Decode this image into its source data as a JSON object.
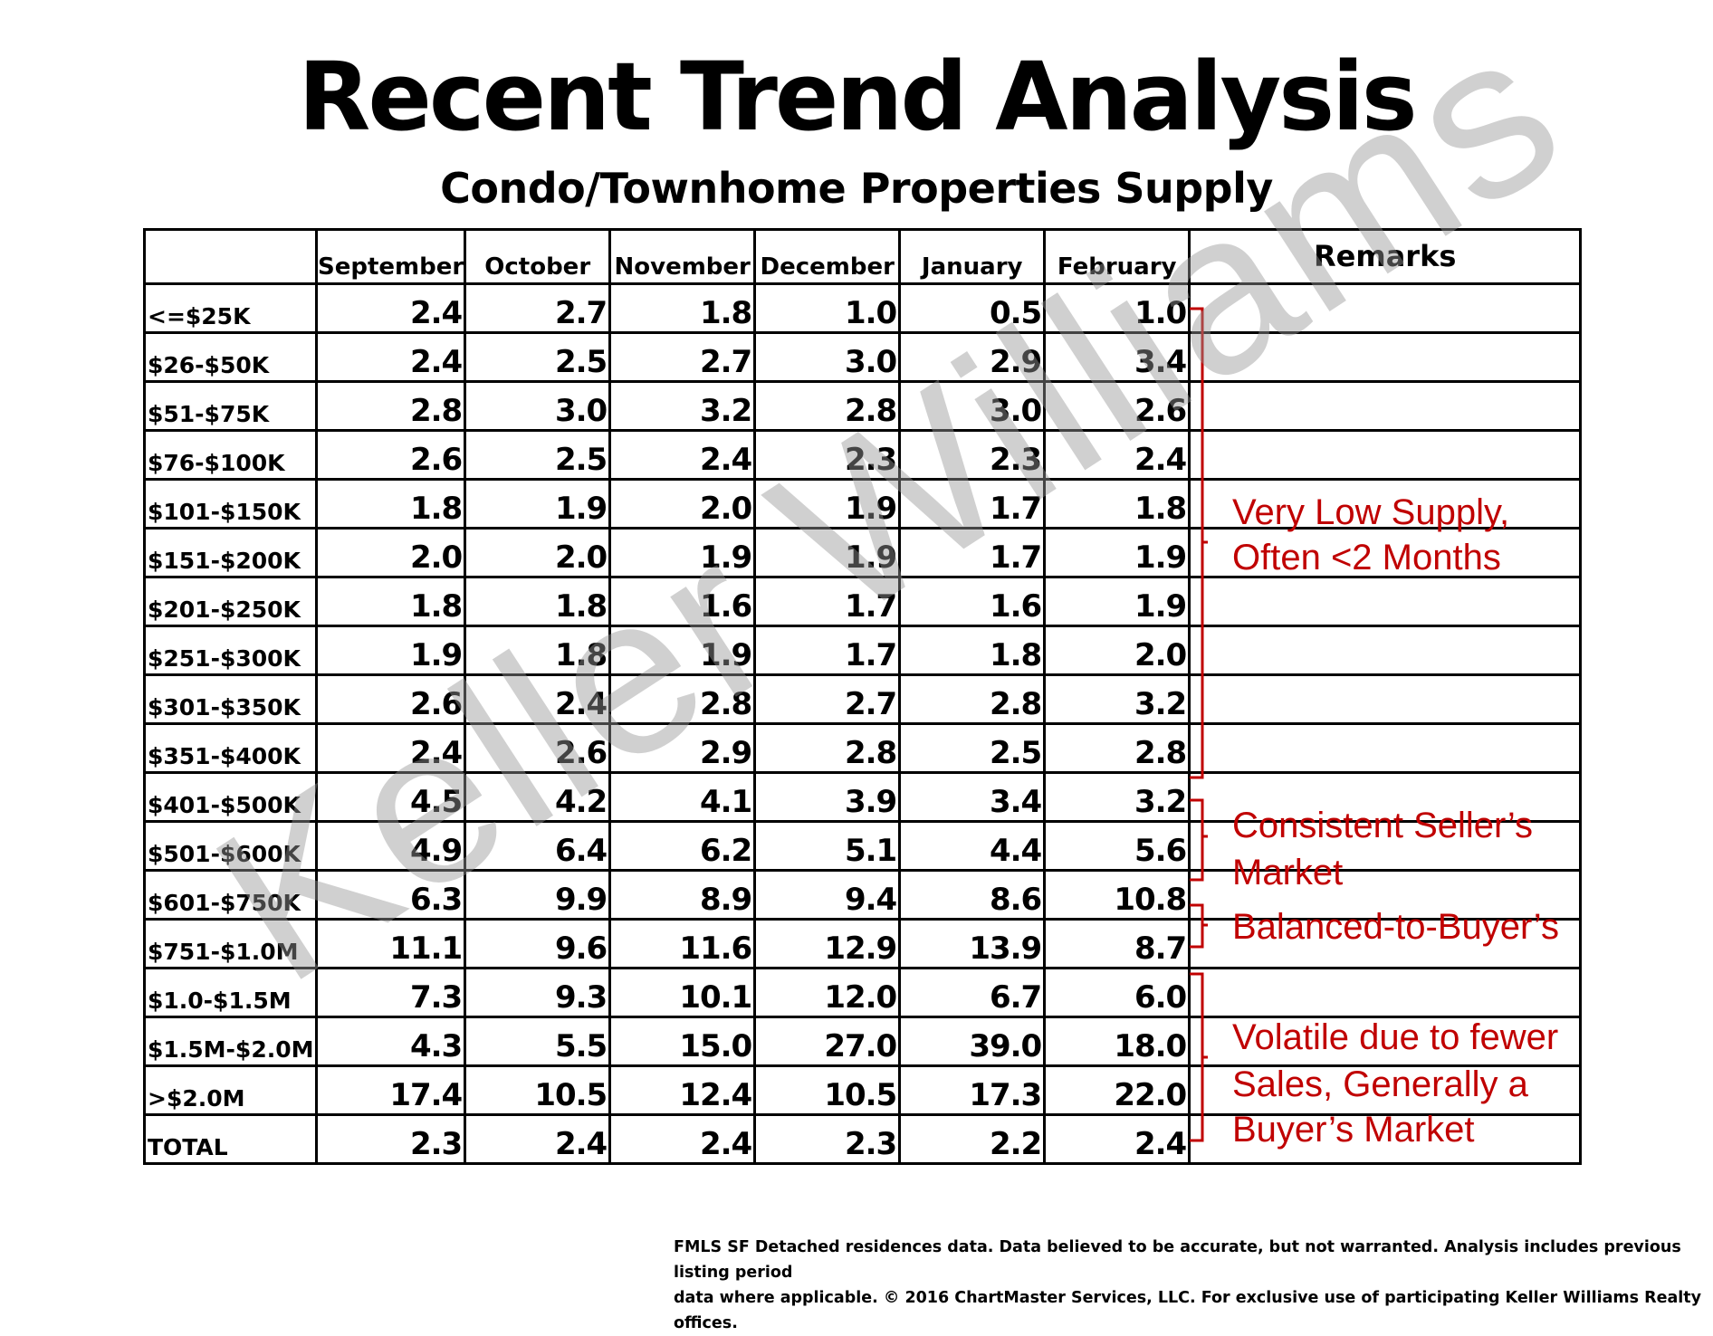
{
  "title": "Recent Trend Analysis",
  "subtitle": "Condo/Townhome Properties Supply",
  "table": {
    "columns": [
      "September",
      "October",
      "November",
      "December",
      "January",
      "February"
    ],
    "remarks_header": "Remarks",
    "rows": [
      {
        "label": "<=$25K",
        "values": [
          "2.4",
          "2.7",
          "1.8",
          "1.0",
          "0.5",
          "1.0"
        ]
      },
      {
        "label": "$26-$50K",
        "values": [
          "2.4",
          "2.5",
          "2.7",
          "3.0",
          "2.9",
          "3.4"
        ]
      },
      {
        "label": "$51-$75K",
        "values": [
          "2.8",
          "3.0",
          "3.2",
          "2.8",
          "3.0",
          "2.6"
        ]
      },
      {
        "label": "$76-$100K",
        "values": [
          "2.6",
          "2.5",
          "2.4",
          "2.3",
          "2.3",
          "2.4"
        ]
      },
      {
        "label": "$101-$150K",
        "values": [
          "1.8",
          "1.9",
          "2.0",
          "1.9",
          "1.7",
          "1.8"
        ]
      },
      {
        "label": "$151-$200K",
        "values": [
          "2.0",
          "2.0",
          "1.9",
          "1.9",
          "1.7",
          "1.9"
        ]
      },
      {
        "label": "$201-$250K",
        "values": [
          "1.8",
          "1.8",
          "1.6",
          "1.7",
          "1.6",
          "1.9"
        ]
      },
      {
        "label": "$251-$300K",
        "values": [
          "1.9",
          "1.8",
          "1.9",
          "1.7",
          "1.8",
          "2.0"
        ]
      },
      {
        "label": "$301-$350K",
        "values": [
          "2.6",
          "2.4",
          "2.8",
          "2.7",
          "2.8",
          "3.2"
        ]
      },
      {
        "label": "$351-$400K",
        "values": [
          "2.4",
          "2.6",
          "2.9",
          "2.8",
          "2.5",
          "2.8"
        ]
      },
      {
        "label": "$401-$500K",
        "values": [
          "4.5",
          "4.2",
          "4.1",
          "3.9",
          "3.4",
          "3.2"
        ]
      },
      {
        "label": "$501-$600K",
        "values": [
          "4.9",
          "6.4",
          "6.2",
          "5.1",
          "4.4",
          "5.6"
        ]
      },
      {
        "label": "$601-$750K",
        "values": [
          "6.3",
          "9.9",
          "8.9",
          "9.4",
          "8.6",
          "10.8"
        ]
      },
      {
        "label": "$751-$1.0M",
        "values": [
          "11.1",
          "9.6",
          "11.6",
          "12.9",
          "13.9",
          "8.7"
        ]
      },
      {
        "label": "$1.0-$1.5M",
        "values": [
          "7.3",
          "9.3",
          "10.1",
          "12.0",
          "6.7",
          "6.0"
        ]
      },
      {
        "label": "$1.5M-$2.0M",
        "values": [
          "4.3",
          "5.5",
          "15.0",
          "27.0",
          "39.0",
          "18.0"
        ]
      },
      {
        "label": ">$2.0M",
        "values": [
          "17.4",
          "10.5",
          "12.4",
          "10.5",
          "17.3",
          "22.0"
        ]
      },
      {
        "label": "TOTAL",
        "values": [
          "2.3",
          "2.4",
          "2.4",
          "2.3",
          "2.2",
          "2.4"
        ]
      }
    ]
  },
  "remarks": {
    "very_low_1": "Very Low Supply,",
    "very_low_2": "Often <2 Months",
    "consistent_1": "Consistent Seller’s",
    "consistent_2": "Market",
    "balanced": "Balanced-to-Buyer’s",
    "volatile_1": "Volatile due to fewer",
    "volatile_2": "Sales, Generally a",
    "volatile_3": "Buyer’s Market"
  },
  "remark_color": "#c00000",
  "watermark": "Keller Williams",
  "footnote": "FMLS SF Detached residences data.  Data believed to be accurate, but not warranted.    Analysis includes previous listing period\ndata where applicable.  © 2016 ChartMaster Services, LLC.  For exclusive use of participating Keller Williams Realty offices."
}
